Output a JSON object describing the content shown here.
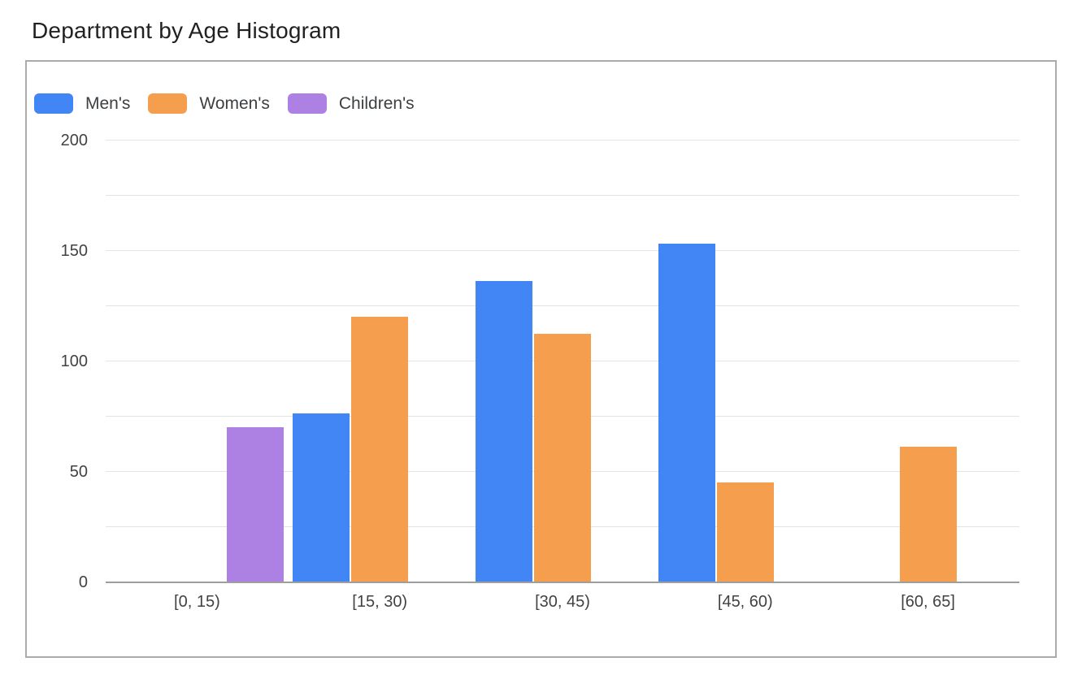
{
  "page": {
    "title": "Department by Age Histogram"
  },
  "chart_data": {
    "type": "bar",
    "title": "Department by Age Histogram",
    "categories": [
      "[0, 15)",
      "[15, 30)",
      "[30, 45)",
      "[45, 60)",
      "[60, 65]"
    ],
    "series": [
      {
        "name": "Men's",
        "color": "#4285F4",
        "values": [
          null,
          76,
          136,
          153,
          null
        ]
      },
      {
        "name": "Women's",
        "color": "#F49E4E",
        "values": [
          null,
          120,
          112,
          45,
          61
        ]
      },
      {
        "name": "Children's",
        "color": "#AD80E4",
        "values": [
          70,
          null,
          null,
          null,
          null
        ]
      }
    ],
    "xlabel": "",
    "ylabel": "",
    "ylim": [
      0,
      200
    ],
    "y_ticks": [
      0,
      50,
      100,
      150,
      200
    ],
    "grid_step": 25,
    "grid": true,
    "legend_position": "top-left",
    "colors": {
      "gridline": "#e3e3e3",
      "baseline": "#9e9e9e",
      "axis_label": "#424242",
      "legend_label": "#3c4043",
      "title": "#212121",
      "card_border": "#ababab",
      "background": "#ffffff"
    }
  }
}
